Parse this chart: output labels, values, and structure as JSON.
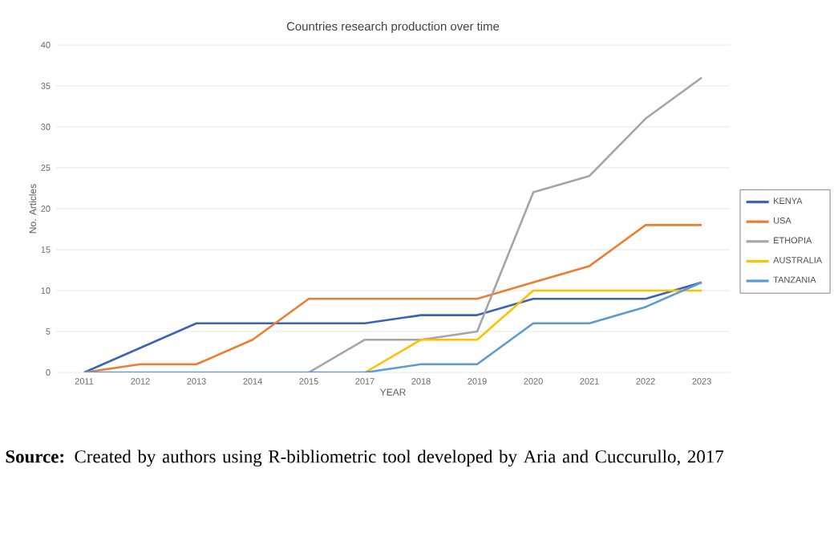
{
  "chart_data": {
    "type": "line",
    "title": "Countries research production over time",
    "xlabel": "YEAR",
    "ylabel": "No. Articles",
    "categories": [
      "2011",
      "2012",
      "2013",
      "2014",
      "2015",
      "2017",
      "2018",
      "2019",
      "2020",
      "2021",
      "2022",
      "2023"
    ],
    "series": [
      {
        "name": "KENYA",
        "color": "#3a63b8",
        "values": [
          0,
          3,
          6,
          6,
          6,
          6,
          7,
          7,
          9,
          9,
          9,
          11
        ]
      },
      {
        "name": "USA",
        "color": "#ed7d31",
        "values": [
          0,
          1,
          1,
          4,
          9,
          9,
          9,
          9,
          11,
          13,
          18,
          18
        ]
      },
      {
        "name": "ETHOPIA",
        "color": "#a5a5a5",
        "values": [
          null,
          null,
          null,
          null,
          0,
          4,
          4,
          5,
          22,
          24,
          31,
          36
        ]
      },
      {
        "name": "AUSTRALIA",
        "color": "#ffc000",
        "values": [
          null,
          null,
          null,
          null,
          null,
          0,
          4,
          4,
          10,
          10,
          10,
          10
        ]
      },
      {
        "name": "TANZANIA",
        "color": "#5b9bd5",
        "values": [
          0,
          0,
          0,
          0,
          0,
          0,
          1,
          1,
          6,
          6,
          8,
          11
        ]
      }
    ],
    "ylim": [
      0,
      40
    ],
    "yticks": [
      0,
      5,
      10,
      15,
      20,
      25,
      30,
      35,
      40
    ],
    "grid": "y",
    "legend": "right",
    "marker": "none",
    "line_style": "solid",
    "annotations": [
      "**Source:** Created by authors using R-bibliometric tool developed by Aria and Cuccurullo, 2017"
    ]
  }
}
